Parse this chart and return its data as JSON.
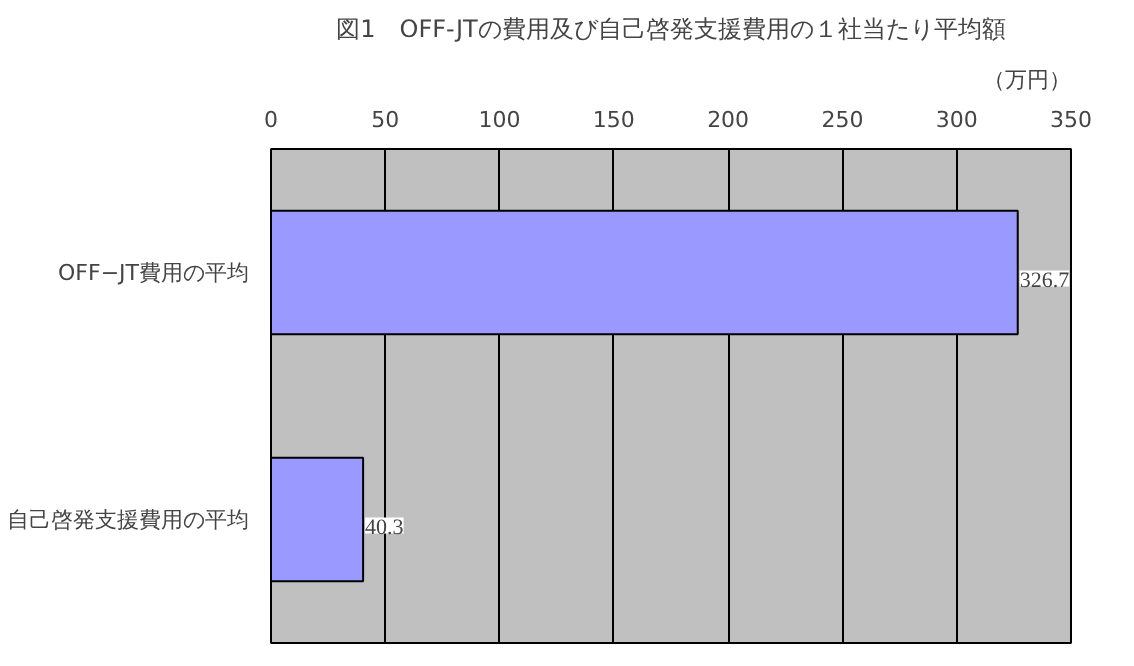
{
  "chart_data": {
    "type": "bar",
    "orientation": "horizontal",
    "title": "図1　OFF-JTの費用及び自己啓発支援費用の１社当たり平均額",
    "xlabel": "（万円）",
    "categories": [
      "OFF−JT費用の平均",
      "自己啓発支援費用の平均"
    ],
    "values": [
      326.7,
      40.3
    ],
    "color": "#9999ff",
    "data_labels": true,
    "xlim": [
      0,
      350
    ],
    "xticks": [
      0,
      50,
      100,
      150,
      200,
      250,
      300,
      350
    ],
    "grid": "x"
  }
}
